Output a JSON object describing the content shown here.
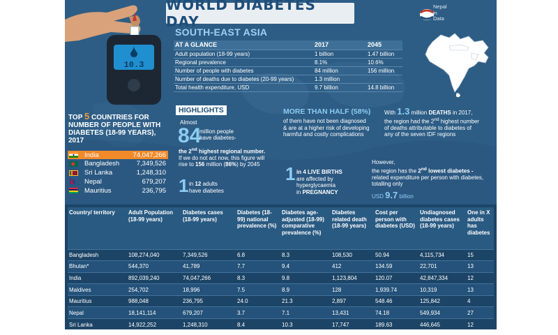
{
  "title": "WORLD DIABETES DAY",
  "logo": {
    "line1": "Nepal",
    "line2": "in",
    "line3": "Data"
  },
  "meter_display": "10.3",
  "region": "SOUTH-EAST ASIA",
  "glance": {
    "header": [
      "AT A GLANCE",
      "2017",
      "2045"
    ],
    "rows": [
      [
        "Adult population (18-99 years)",
        "1 billion",
        "1.47 billion"
      ],
      [
        "Regional prevalence",
        "8.1%",
        "10.6%"
      ],
      [
        "Number of people with diabetes",
        "84 million",
        "156 million"
      ],
      [
        "Number of deaths due to diabetes (20-99 years)",
        "1.3 million",
        ""
      ],
      [
        "Total health expenditure, USD",
        "9.7 billion",
        "14.8 billion"
      ]
    ]
  },
  "top5": {
    "title_pre": "TOP ",
    "title_num": "5",
    "title_post": " COUNTRIES FOR NUMBER OF PEOPLE WITH DIABETES (18-99 YEARS), 2017",
    "rows": [
      {
        "country": "India",
        "value": "74,047,266",
        "highlight": true
      },
      {
        "country": "Bangladesh",
        "value": "7,349,526",
        "highlight": false
      },
      {
        "country": "Sri Lanka",
        "value": "1,248,310",
        "highlight": false
      },
      {
        "country": "Nepal",
        "value": "679,207",
        "highlight": false
      },
      {
        "country": "Mauritius",
        "value": "236,795",
        "highlight": false
      }
    ]
  },
  "highlights": {
    "title": "HIGHLIGHTS",
    "almost": "Almost",
    "big84": "84",
    "t84a": "million people",
    "t84b": "have diabetes-",
    "t84c_pre": "the ",
    "t84c_sup": "nd",
    "t84c_num": "2",
    "t84c_post": " highest regional number.",
    "t84d": "If we do not act now, this figure will",
    "t84e_pre": "rise to ",
    "t84e_num": "156",
    "t84e_mid": " million (",
    "t84e_pct": "86%",
    "t84e_post": ") by 2045",
    "one_a_big": "1",
    "one_a_l1_pre": "in ",
    "one_a_l1_num": "12",
    "one_a_l1_post": " adults",
    "one_a_l2": "have diabetes",
    "more_title": "MORE THAN HALF (58%)",
    "more_l1": "of them have not been diagnosed",
    "more_l2": "& are at a higher risk of developing",
    "more_l3": "harmful and costly complications",
    "deaths_pre": "With ",
    "deaths_num": "1.3",
    "deaths_mid": " million ",
    "deaths_bold": "DEATHS",
    "deaths_post": " in 2017,",
    "deaths_l2_pre": "the region had the ",
    "deaths_l2_num": "2",
    "deaths_l2_sup": "nd",
    "deaths_l2_post": " highest number",
    "deaths_l3": "of deaths attributable to diabetes of",
    "deaths_l4": "any of the seven IDF regions",
    "one_b_big": "1",
    "one_b_l1_pre": "in ",
    "one_b_l1_num": "4",
    "one_b_l1_post": " LIVE BIRTHS",
    "one_b_l2": "are affected by",
    "one_b_l3": "hyperglycaemia",
    "one_b_l4_pre": "in ",
    "one_b_l4_bold": "PREGNANCY",
    "however_l1": "However,",
    "however_l2_pre": "the region has the ",
    "however_l2_num": "2",
    "however_l2_sup": "nd",
    "however_l2_post": " lowest diabetes -",
    "however_l3": "related expenditure per person with diabetes,",
    "however_l4": "totalling only",
    "usd_pre": "USD ",
    "usd_num": "9.7",
    "usd_post": " billion"
  },
  "table": {
    "headers": [
      "Country/ territory",
      "Adult Population (18-99 years)",
      "Diabetes cases (18-99 years)",
      "Diabetes (18-99) national prevalence (%)",
      "Diabetes age-adjusted (18-99) comparative prevalence (%)",
      "Diabetes related death (18-99 years)",
      "Cost per person with diabetes (USD)",
      "Undiagnosed diabetes cases (18-99 years)",
      "One in X adults has diabetes"
    ],
    "rows": [
      [
        "Bangladesh",
        "108,274,040",
        "7,349,526",
        "6.8",
        "8.3",
        "108,530",
        "50.94",
        "4,115,734",
        "15"
      ],
      [
        "Bhutan*",
        "544,370",
        "41,789",
        "7.7",
        "9.4",
        "412",
        "134.59",
        "22,701",
        "13"
      ],
      [
        "India",
        "892,039,240",
        "74,047,266",
        "8.3",
        "9.8",
        "1,123,804",
        "120.07",
        "42,847,334",
        "12"
      ],
      [
        "Maldives",
        "254,702",
        "18,996",
        "7.5",
        "8.9",
        "128",
        "1,939.74",
        "10,319",
        "13"
      ],
      [
        "Mauritius",
        "988,048",
        "236,795",
        "24.0",
        "21.3",
        "2,897",
        "548.46",
        "125,842",
        "4"
      ],
      [
        "Nepal",
        "18,141,114",
        "679,207",
        "3.7",
        "7.1",
        "13,431",
        "74.18",
        "549,934",
        "27"
      ],
      [
        "Sri Lanka",
        "14,922,252",
        "1,248,310",
        "8.4",
        "10.3",
        "17,747",
        "189.63",
        "446,645",
        "12"
      ]
    ]
  }
}
